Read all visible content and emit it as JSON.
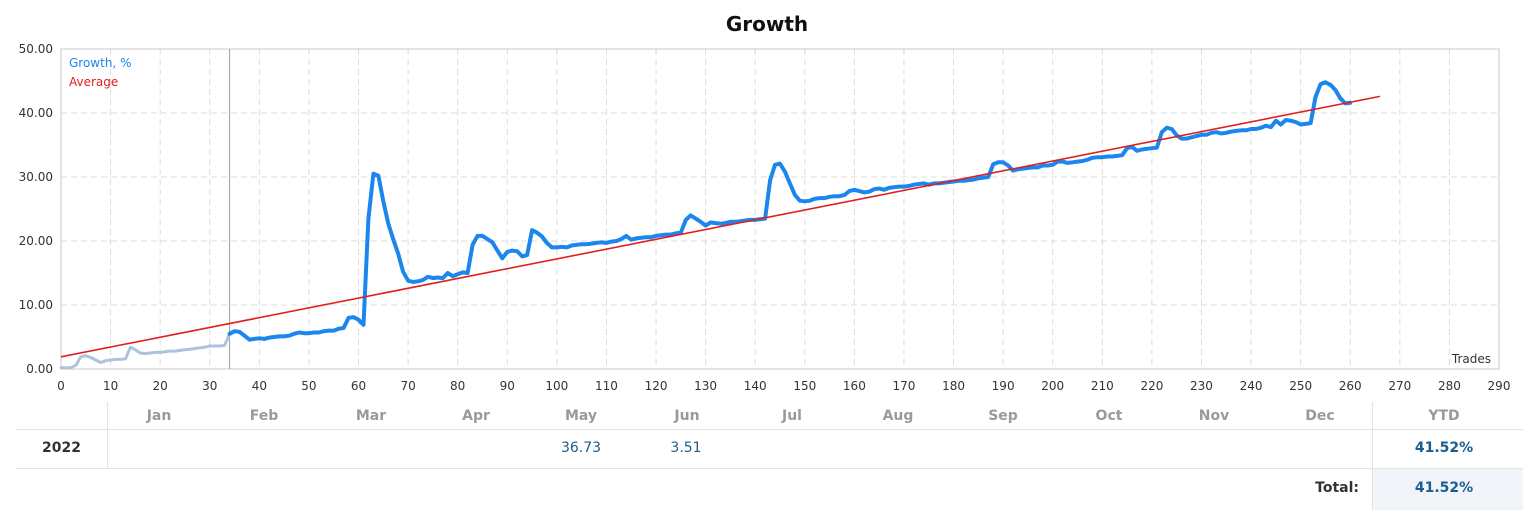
{
  "chart_data": {
    "type": "line",
    "title": "Growth",
    "xlabel": "Trades",
    "ylabel": "",
    "xlim": [
      0,
      290
    ],
    "ylim": [
      0,
      50
    ],
    "x_ticks": [
      0,
      10,
      20,
      30,
      40,
      50,
      60,
      70,
      80,
      90,
      100,
      110,
      120,
      130,
      140,
      150,
      160,
      170,
      180,
      190,
      200,
      210,
      220,
      230,
      240,
      250,
      260,
      270,
      280,
      290
    ],
    "y_ticks": [
      "0.00",
      "10.00",
      "20.00",
      "30.00",
      "40.00",
      "50.00"
    ],
    "grid": true,
    "legend": "top-left",
    "marker_x": 34,
    "series": [
      {
        "name": "Growth, %",
        "color": "#1a86ee",
        "early_color": "#adc3dc",
        "early_until_x": 34,
        "points": [
          [
            0,
            0.2
          ],
          [
            2,
            0.2
          ],
          [
            3,
            0.6
          ],
          [
            4,
            1.9
          ],
          [
            5,
            2.1
          ],
          [
            6,
            1.8
          ],
          [
            7,
            1.4
          ],
          [
            8,
            1.0
          ],
          [
            9,
            1.3
          ],
          [
            10,
            1.4
          ],
          [
            11,
            1.5
          ],
          [
            12,
            1.5
          ],
          [
            13,
            1.6
          ],
          [
            14,
            3.4
          ],
          [
            15,
            3.0
          ],
          [
            16,
            2.5
          ],
          [
            17,
            2.4
          ],
          [
            18,
            2.5
          ],
          [
            19,
            2.6
          ],
          [
            20,
            2.6
          ],
          [
            21,
            2.7
          ],
          [
            22,
            2.8
          ],
          [
            23,
            2.8
          ],
          [
            24,
            2.9
          ],
          [
            25,
            3.0
          ],
          [
            26,
            3.1
          ],
          [
            27,
            3.2
          ],
          [
            28,
            3.3
          ],
          [
            29,
            3.4
          ],
          [
            30,
            3.6
          ],
          [
            31,
            3.6
          ],
          [
            32,
            3.6
          ],
          [
            33,
            3.7
          ],
          [
            34,
            5.5
          ],
          [
            35,
            5.9
          ],
          [
            36,
            5.8
          ],
          [
            37,
            5.2
          ],
          [
            38,
            4.6
          ],
          [
            39,
            4.7
          ],
          [
            40,
            4.8
          ],
          [
            41,
            4.7
          ],
          [
            42,
            4.9
          ],
          [
            43,
            5.0
          ],
          [
            44,
            5.1
          ],
          [
            45,
            5.1
          ],
          [
            46,
            5.2
          ],
          [
            47,
            5.5
          ],
          [
            48,
            5.7
          ],
          [
            49,
            5.6
          ],
          [
            50,
            5.6
          ],
          [
            51,
            5.7
          ],
          [
            52,
            5.7
          ],
          [
            53,
            5.9
          ],
          [
            54,
            6.0
          ],
          [
            55,
            6.0
          ],
          [
            56,
            6.3
          ],
          [
            57,
            6.4
          ],
          [
            58,
            8.0
          ],
          [
            59,
            8.1
          ],
          [
            60,
            7.7
          ],
          [
            61,
            6.9
          ],
          [
            62,
            23.5
          ],
          [
            63,
            30.5
          ],
          [
            64,
            30.2
          ],
          [
            65,
            26.2
          ],
          [
            66,
            22.7
          ],
          [
            67,
            20.3
          ],
          [
            68,
            18.0
          ],
          [
            69,
            15.2
          ],
          [
            70,
            13.8
          ],
          [
            71,
            13.6
          ],
          [
            72,
            13.7
          ],
          [
            73,
            13.9
          ],
          [
            74,
            14.4
          ],
          [
            75,
            14.2
          ],
          [
            76,
            14.3
          ],
          [
            77,
            14.2
          ],
          [
            78,
            15.0
          ],
          [
            79,
            14.5
          ],
          [
            80,
            14.8
          ],
          [
            81,
            15.1
          ],
          [
            82,
            15.0
          ],
          [
            83,
            19.4
          ],
          [
            84,
            20.8
          ],
          [
            85,
            20.8
          ],
          [
            86,
            20.3
          ],
          [
            87,
            19.8
          ],
          [
            88,
            18.5
          ],
          [
            89,
            17.3
          ],
          [
            90,
            18.3
          ],
          [
            91,
            18.5
          ],
          [
            92,
            18.4
          ],
          [
            93,
            17.6
          ],
          [
            94,
            17.8
          ],
          [
            95,
            21.7
          ],
          [
            96,
            21.3
          ],
          [
            97,
            20.7
          ],
          [
            98,
            19.7
          ],
          [
            99,
            19.0
          ],
          [
            100,
            19.0
          ],
          [
            101,
            19.1
          ],
          [
            102,
            19.0
          ],
          [
            103,
            19.3
          ],
          [
            104,
            19.4
          ],
          [
            105,
            19.5
          ],
          [
            106,
            19.5
          ],
          [
            107,
            19.6
          ],
          [
            108,
            19.7
          ],
          [
            109,
            19.8
          ],
          [
            110,
            19.7
          ],
          [
            111,
            19.9
          ],
          [
            112,
            20.0
          ],
          [
            113,
            20.3
          ],
          [
            114,
            20.8
          ],
          [
            115,
            20.2
          ],
          [
            116,
            20.4
          ],
          [
            117,
            20.5
          ],
          [
            118,
            20.6
          ],
          [
            119,
            20.6
          ],
          [
            120,
            20.8
          ],
          [
            121,
            20.9
          ],
          [
            122,
            21.0
          ],
          [
            123,
            21.0
          ],
          [
            124,
            21.2
          ],
          [
            125,
            21.3
          ],
          [
            126,
            23.3
          ],
          [
            127,
            24.0
          ],
          [
            128,
            23.5
          ],
          [
            129,
            23.0
          ],
          [
            130,
            22.4
          ],
          [
            131,
            22.9
          ],
          [
            132,
            22.8
          ],
          [
            133,
            22.7
          ],
          [
            134,
            22.8
          ],
          [
            135,
            23.0
          ],
          [
            136,
            23.0
          ],
          [
            137,
            23.1
          ],
          [
            138,
            23.2
          ],
          [
            139,
            23.3
          ],
          [
            140,
            23.3
          ],
          [
            141,
            23.4
          ],
          [
            142,
            23.5
          ],
          [
            143,
            29.5
          ],
          [
            144,
            31.9
          ],
          [
            145,
            32.1
          ],
          [
            146,
            30.8
          ],
          [
            147,
            29.0
          ],
          [
            148,
            27.2
          ],
          [
            149,
            26.3
          ],
          [
            150,
            26.2
          ],
          [
            151,
            26.3
          ],
          [
            152,
            26.6
          ],
          [
            153,
            26.7
          ],
          [
            154,
            26.7
          ],
          [
            155,
            26.9
          ],
          [
            156,
            27.0
          ],
          [
            157,
            27.0
          ],
          [
            158,
            27.2
          ],
          [
            159,
            27.8
          ],
          [
            160,
            28.0
          ],
          [
            161,
            27.8
          ],
          [
            162,
            27.6
          ],
          [
            163,
            27.7
          ],
          [
            164,
            28.1
          ],
          [
            165,
            28.2
          ],
          [
            166,
            28.0
          ],
          [
            167,
            28.3
          ],
          [
            168,
            28.4
          ],
          [
            169,
            28.5
          ],
          [
            170,
            28.5
          ],
          [
            171,
            28.6
          ],
          [
            172,
            28.8
          ],
          [
            173,
            28.9
          ],
          [
            174,
            29.0
          ],
          [
            175,
            28.8
          ],
          [
            176,
            29.0
          ],
          [
            177,
            29.0
          ],
          [
            178,
            29.1
          ],
          [
            179,
            29.2
          ],
          [
            180,
            29.3
          ],
          [
            181,
            29.4
          ],
          [
            182,
            29.4
          ],
          [
            183,
            29.5
          ],
          [
            184,
            29.6
          ],
          [
            185,
            29.8
          ],
          [
            186,
            29.9
          ],
          [
            187,
            30.0
          ],
          [
            188,
            32.0
          ],
          [
            189,
            32.3
          ],
          [
            190,
            32.3
          ],
          [
            191,
            31.8
          ],
          [
            192,
            31.0
          ],
          [
            193,
            31.2
          ],
          [
            194,
            31.3
          ],
          [
            195,
            31.4
          ],
          [
            196,
            31.5
          ],
          [
            197,
            31.5
          ],
          [
            198,
            31.8
          ],
          [
            199,
            31.8
          ],
          [
            200,
            31.9
          ],
          [
            201,
            32.4
          ],
          [
            202,
            32.4
          ],
          [
            203,
            32.2
          ],
          [
            204,
            32.3
          ],
          [
            205,
            32.4
          ],
          [
            206,
            32.5
          ],
          [
            207,
            32.7
          ],
          [
            208,
            33.0
          ],
          [
            209,
            33.1
          ],
          [
            210,
            33.1
          ],
          [
            211,
            33.2
          ],
          [
            212,
            33.2
          ],
          [
            213,
            33.3
          ],
          [
            214,
            33.4
          ],
          [
            215,
            34.5
          ],
          [
            216,
            34.7
          ],
          [
            217,
            34.1
          ],
          [
            218,
            34.3
          ],
          [
            219,
            34.4
          ],
          [
            220,
            34.5
          ],
          [
            221,
            34.6
          ],
          [
            222,
            37.0
          ],
          [
            223,
            37.7
          ],
          [
            224,
            37.5
          ],
          [
            225,
            36.5
          ],
          [
            226,
            36.0
          ],
          [
            227,
            36.0
          ],
          [
            228,
            36.2
          ],
          [
            229,
            36.4
          ],
          [
            230,
            36.6
          ],
          [
            231,
            36.6
          ],
          [
            232,
            36.9
          ],
          [
            233,
            37.0
          ],
          [
            234,
            36.8
          ],
          [
            235,
            36.9
          ],
          [
            236,
            37.1
          ],
          [
            237,
            37.2
          ],
          [
            238,
            37.3
          ],
          [
            239,
            37.3
          ],
          [
            240,
            37.5
          ],
          [
            241,
            37.5
          ],
          [
            242,
            37.7
          ],
          [
            243,
            38.0
          ],
          [
            244,
            37.8
          ],
          [
            245,
            38.8
          ],
          [
            246,
            38.2
          ],
          [
            247,
            38.9
          ],
          [
            248,
            38.8
          ],
          [
            249,
            38.6
          ],
          [
            250,
            38.2
          ],
          [
            251,
            38.3
          ],
          [
            252,
            38.4
          ],
          [
            253,
            42.5
          ],
          [
            254,
            44.5
          ],
          [
            255,
            44.8
          ],
          [
            256,
            44.4
          ],
          [
            257,
            43.6
          ],
          [
            258,
            42.3
          ],
          [
            259,
            41.5
          ],
          [
            260,
            41.6
          ]
        ]
      },
      {
        "name": "Average",
        "color": "#e02020",
        "points": [
          [
            0,
            1.9
          ],
          [
            266,
            42.6
          ]
        ]
      }
    ]
  },
  "table": {
    "months": [
      "Jan",
      "Feb",
      "Mar",
      "Apr",
      "May",
      "Jun",
      "Jul",
      "Aug",
      "Sep",
      "Oct",
      "Nov",
      "Dec"
    ],
    "ytd_label": "YTD",
    "row": {
      "year": "2022",
      "may": "36.73",
      "jun": "3.51",
      "ytd": "41.52%"
    },
    "total_label": "Total:",
    "total_value": "41.52%"
  }
}
